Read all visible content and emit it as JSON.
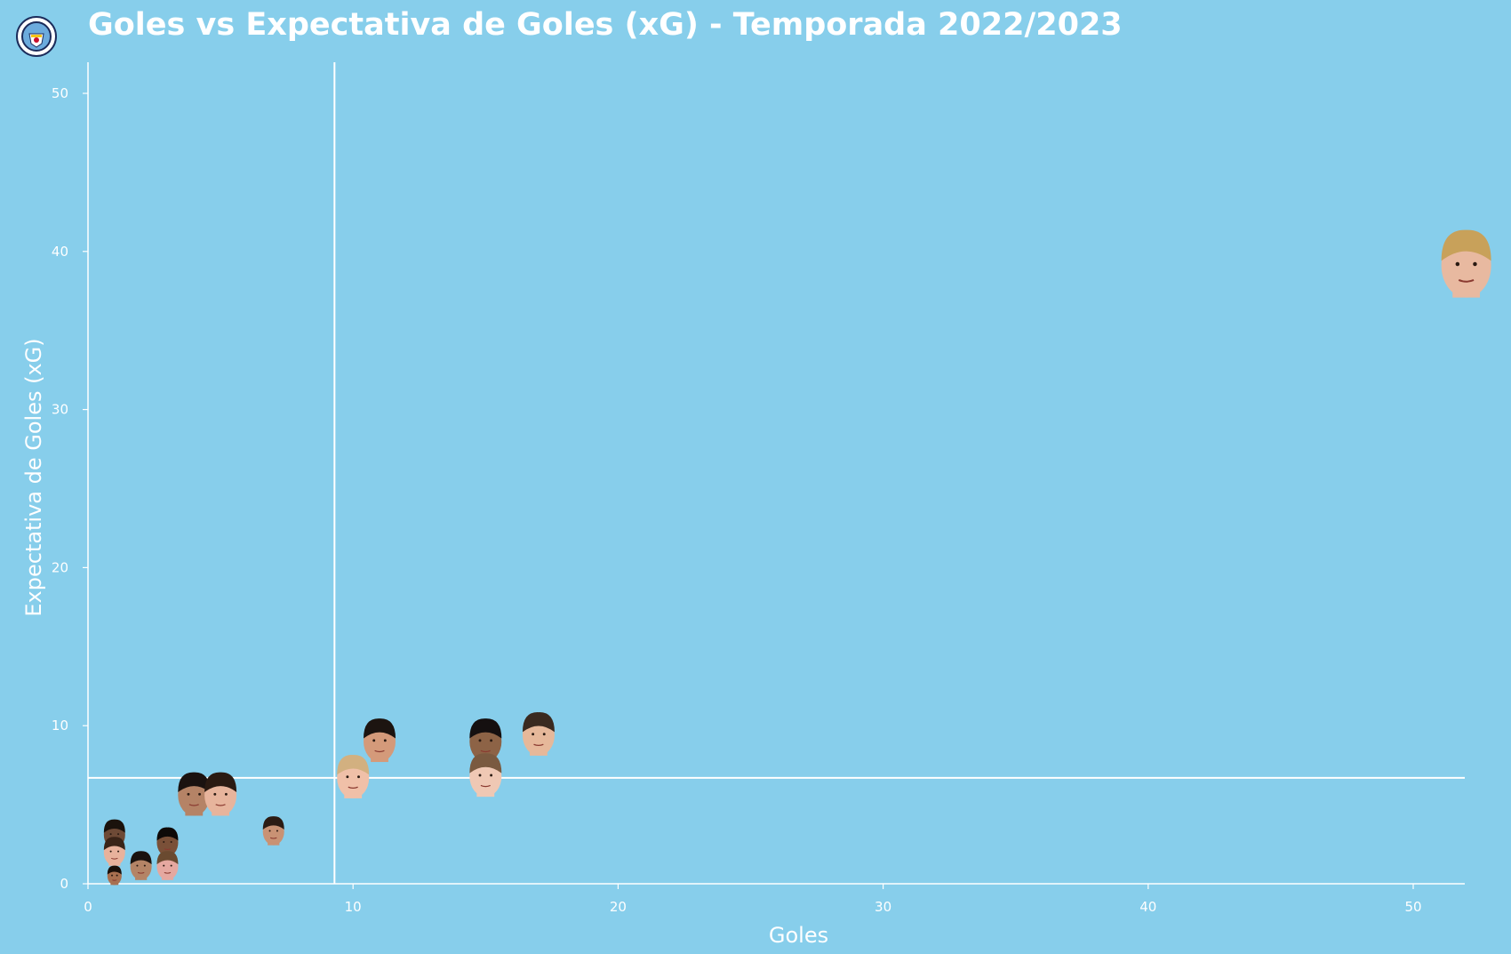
{
  "header": {
    "title": "Goles vs Expectativa de Goles (xG) - Temporada 2022/2023",
    "logo_icon": "manchester-city-crest-icon"
  },
  "chart_data": {
    "type": "scatter",
    "title": "Goles vs Expectativa de Goles (xG) - Temporada 2022/2023",
    "xlabel": "Goles",
    "ylabel": "Expectativa de Goles (xG)",
    "xlim": [
      0,
      52
    ],
    "ylim": [
      0,
      52
    ],
    "xticks": [
      0,
      10,
      20,
      30,
      40,
      50
    ],
    "yticks": [
      0,
      10,
      20,
      30,
      40,
      50
    ],
    "reference_lines": {
      "x_mean": 9.3,
      "y_mean": 6.7
    },
    "marker": "player-face-photo",
    "points": [
      {
        "x": 52,
        "y": 39.1,
        "skin": "#e8b9a0",
        "hair": "#c8a15a"
      },
      {
        "x": 17,
        "y": 9.4,
        "skin": "#e6b89a",
        "hair": "#3a2a20"
      },
      {
        "x": 15,
        "y": 9.0,
        "skin": "#8d6346",
        "hair": "#151010"
      },
      {
        "x": 11,
        "y": 9.0,
        "skin": "#d49a7a",
        "hair": "#1c1410"
      },
      {
        "x": 15,
        "y": 6.8,
        "skin": "#efc8b4",
        "hair": "#7a5a40"
      },
      {
        "x": 10,
        "y": 6.7,
        "skin": "#f0c0a8",
        "hair": "#d2b080"
      },
      {
        "x": 4,
        "y": 5.6,
        "skin": "#b58366",
        "hair": "#1a1210"
      },
      {
        "x": 5,
        "y": 5.6,
        "skin": "#e7b49c",
        "hair": "#2a1a12"
      },
      {
        "x": 7,
        "y": 3.3,
        "skin": "#c99274",
        "hair": "#2c1c14"
      },
      {
        "x": 3,
        "y": 2.6,
        "skin": "#7a5038",
        "hair": "#0e0a08"
      },
      {
        "x": 1,
        "y": 3.1,
        "skin": "#6e4a36",
        "hair": "#1a120c"
      },
      {
        "x": 1,
        "y": 2.0,
        "skin": "#e8b29c",
        "hair": "#3a2418"
      },
      {
        "x": 2,
        "y": 1.1,
        "skin": "#b48466",
        "hair": "#1a120e"
      },
      {
        "x": 3,
        "y": 1.1,
        "skin": "#e5a8a0",
        "hair": "#6a4a30"
      },
      {
        "x": 1,
        "y": 0.5,
        "skin": "#a87050",
        "hair": "#1a100a"
      }
    ]
  }
}
